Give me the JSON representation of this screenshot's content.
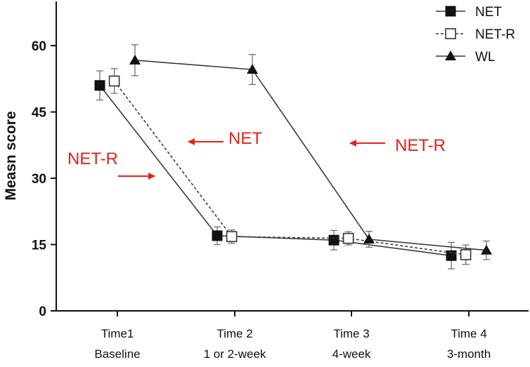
{
  "chart_data": {
    "type": "line",
    "title": "",
    "xlabel": "",
    "ylabel": "Measn score",
    "ylim": [
      0,
      67
    ],
    "yticks": [
      0,
      15,
      30,
      45,
      60
    ],
    "categories": [
      {
        "line1": "Time1",
        "line2": "Baseline"
      },
      {
        "line1": "Time 2",
        "line2": "1 or 2-week"
      },
      {
        "line1": "Time 3",
        "line2": "4-week"
      },
      {
        "line1": "Time 4",
        "line2": "3-month"
      }
    ],
    "series": [
      {
        "name": "NET",
        "marker": "filled-square",
        "line": "solid",
        "offset": -0.17,
        "values": [
          51,
          17,
          16,
          12.5
        ],
        "errors": [
          3.3,
          2,
          2.2,
          3
        ]
      },
      {
        "name": "NET-R",
        "marker": "open-square",
        "line": "dashed",
        "offset": -0.03,
        "values": [
          52,
          16.8,
          16.4,
          12.7
        ],
        "errors": [
          2.8,
          1.5,
          1.5,
          2.2
        ]
      },
      {
        "name": "WL",
        "marker": "filled-triangle",
        "line": "solid",
        "offset": 0.17,
        "values": [
          56.7,
          54.6,
          16.2,
          13.7
        ],
        "errors": [
          3.5,
          3.4,
          1.8,
          2.1
        ]
      }
    ],
    "legend": {
      "position": "top-right"
    },
    "annotations": [
      {
        "text": "NET-R",
        "arrow": "right"
      },
      {
        "text": "NET",
        "arrow": "left"
      },
      {
        "text": "NET-R",
        "arrow": "left"
      }
    ],
    "annotation_color": "#e8201a",
    "line_color": "#3a3a3a",
    "grid": false
  }
}
